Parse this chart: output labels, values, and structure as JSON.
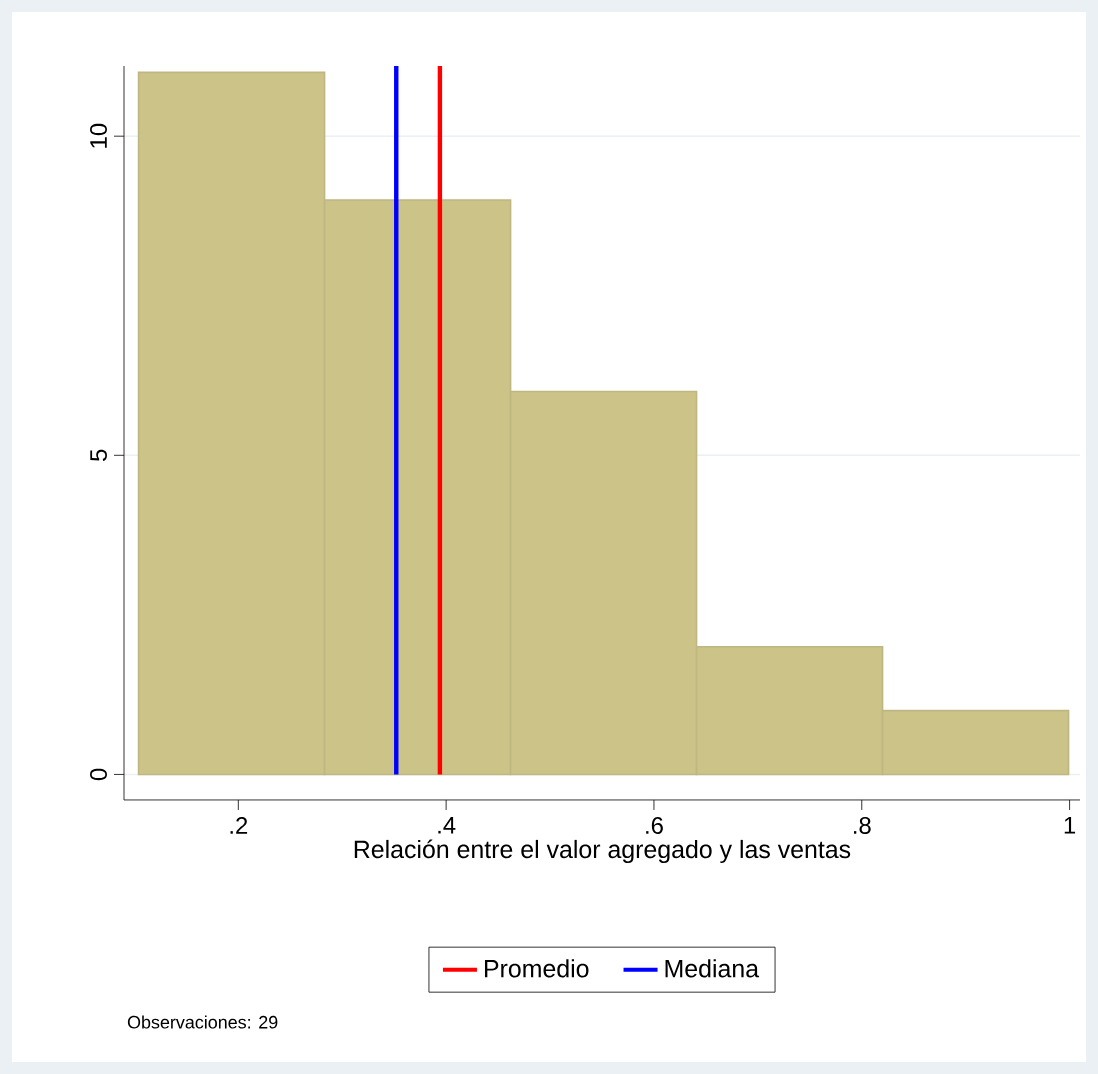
{
  "chart_data": {
    "type": "histogram",
    "xlabel": "Relación entre el valor agregado y las ventas",
    "bins": [
      0.104,
      0.283,
      0.462,
      0.641,
      0.82,
      0.999
    ],
    "values": [
      11,
      9,
      6,
      2,
      1
    ],
    "color": "#cbc388",
    "xlim": [
      0.09,
      1.01
    ],
    "ylim": [
      -0.4,
      11.1
    ],
    "xticks": [
      {
        "value": 0.2,
        "label": ".2"
      },
      {
        "value": 0.4,
        "label": ".4"
      },
      {
        "value": 0.6,
        "label": ".6"
      },
      {
        "value": 0.8,
        "label": ".8"
      },
      1
    ],
    "yticks": [
      0,
      5,
      10
    ],
    "grid": "y",
    "legend": "bottom",
    "ref_lines": [
      {
        "axis": "x",
        "value": 0.394,
        "label": "Promedio",
        "color": "#ff0000"
      },
      {
        "axis": "x",
        "value": 0.352,
        "label": "Mediana",
        "color": "#0000ff"
      }
    ],
    "annotations": [
      "Observaciones: 29"
    ]
  }
}
